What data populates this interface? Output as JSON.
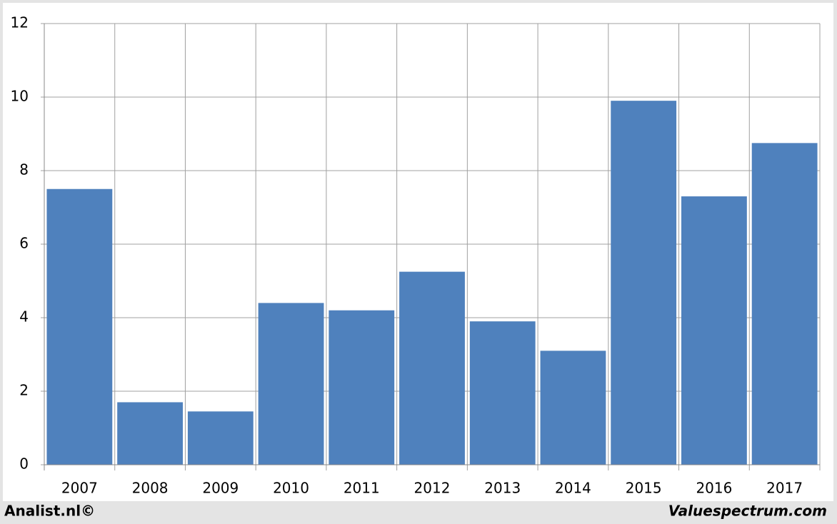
{
  "chart_data": {
    "type": "bar",
    "categories": [
      "2007",
      "2008",
      "2009",
      "2010",
      "2011",
      "2012",
      "2013",
      "2014",
      "2015",
      "2016",
      "2017"
    ],
    "values": [
      7.5,
      1.7,
      1.45,
      4.4,
      4.2,
      5.25,
      3.9,
      3.1,
      9.9,
      7.3,
      8.75
    ],
    "color": "#4f81bd",
    "ylim": [
      0,
      12
    ],
    "yticks": [
      0,
      2,
      4,
      6,
      8,
      10,
      12
    ],
    "grid": true,
    "credits": [
      "Analist.nl©",
      "Valuespectrum.com"
    ]
  }
}
